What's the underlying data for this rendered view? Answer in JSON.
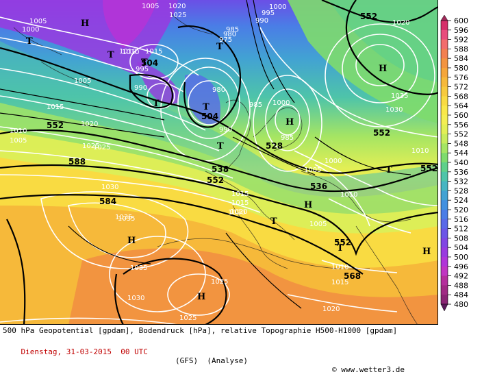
{
  "map": {
    "highs": [
      "H",
      "H",
      "H",
      "H",
      "H",
      "H",
      "H"
    ],
    "lows": [
      "T",
      "T",
      "T",
      "T",
      "T",
      "T",
      "T",
      "T",
      "T",
      "T"
    ],
    "geopotential_labels": [
      "552",
      "504",
      "504",
      "552",
      "588",
      "584",
      "538",
      "552",
      "528",
      "536",
      "552",
      "568",
      "552",
      "552"
    ],
    "pressure_labels": [
      "1005",
      "1025",
      "1020",
      "1000",
      "995",
      "1000",
      "990",
      "1005",
      "1010",
      "1015",
      "995",
      "985",
      "980",
      "975",
      "1005",
      "990",
      "1015",
      "1020",
      "1025",
      "1010",
      "985",
      "980",
      "1020",
      "1035",
      "1030",
      "1010",
      "1005",
      "1000",
      "1000",
      "1005",
      "985",
      "990",
      "1010",
      "1015",
      "1030",
      "1015",
      "1035",
      "1020",
      "1010",
      "1025",
      "1030",
      "1035",
      "1025",
      "1020",
      "1015",
      "1010",
      "1005",
      "1025",
      "1020",
      "1035"
    ]
  },
  "colorbar": {
    "ticks": [
      "600",
      "596",
      "592",
      "588",
      "584",
      "580",
      "576",
      "572",
      "568",
      "564",
      "560",
      "556",
      "552",
      "548",
      "544",
      "540",
      "536",
      "532",
      "528",
      "524",
      "520",
      "516",
      "512",
      "508",
      "504",
      "500",
      "496",
      "492",
      "488",
      "484",
      "480"
    ],
    "colors": [
      "#d6306a",
      "#e84d7d",
      "#f26d6d",
      "#f28050",
      "#f29440",
      "#f5a63a",
      "#f6b93a",
      "#f7ca3d",
      "#f9db42",
      "#f9e849",
      "#f4ee52",
      "#e3ef55",
      "#c8ec5c",
      "#a5e563",
      "#7edb6d",
      "#5ed08a",
      "#4ec4a9",
      "#47b5c2",
      "#42a2d3",
      "#4190e0",
      "#4a7de6",
      "#5a69e8",
      "#6c55e6",
      "#8145e3",
      "#993adf",
      "#b035d8",
      "#c035c2",
      "#b42f9c",
      "#a02a84",
      "#8a2474"
    ]
  },
  "footer": {
    "line1": "500 hPa Geopotential [gpdam], Bodendruck [hPa], relative Topographie H500-H1000 [gpdam]",
    "date": "Dienstag, 31-03-2015  00 UTC",
    "model": "(GFS)  (Analyse)",
    "copyright": "© www.wetter3.de"
  }
}
